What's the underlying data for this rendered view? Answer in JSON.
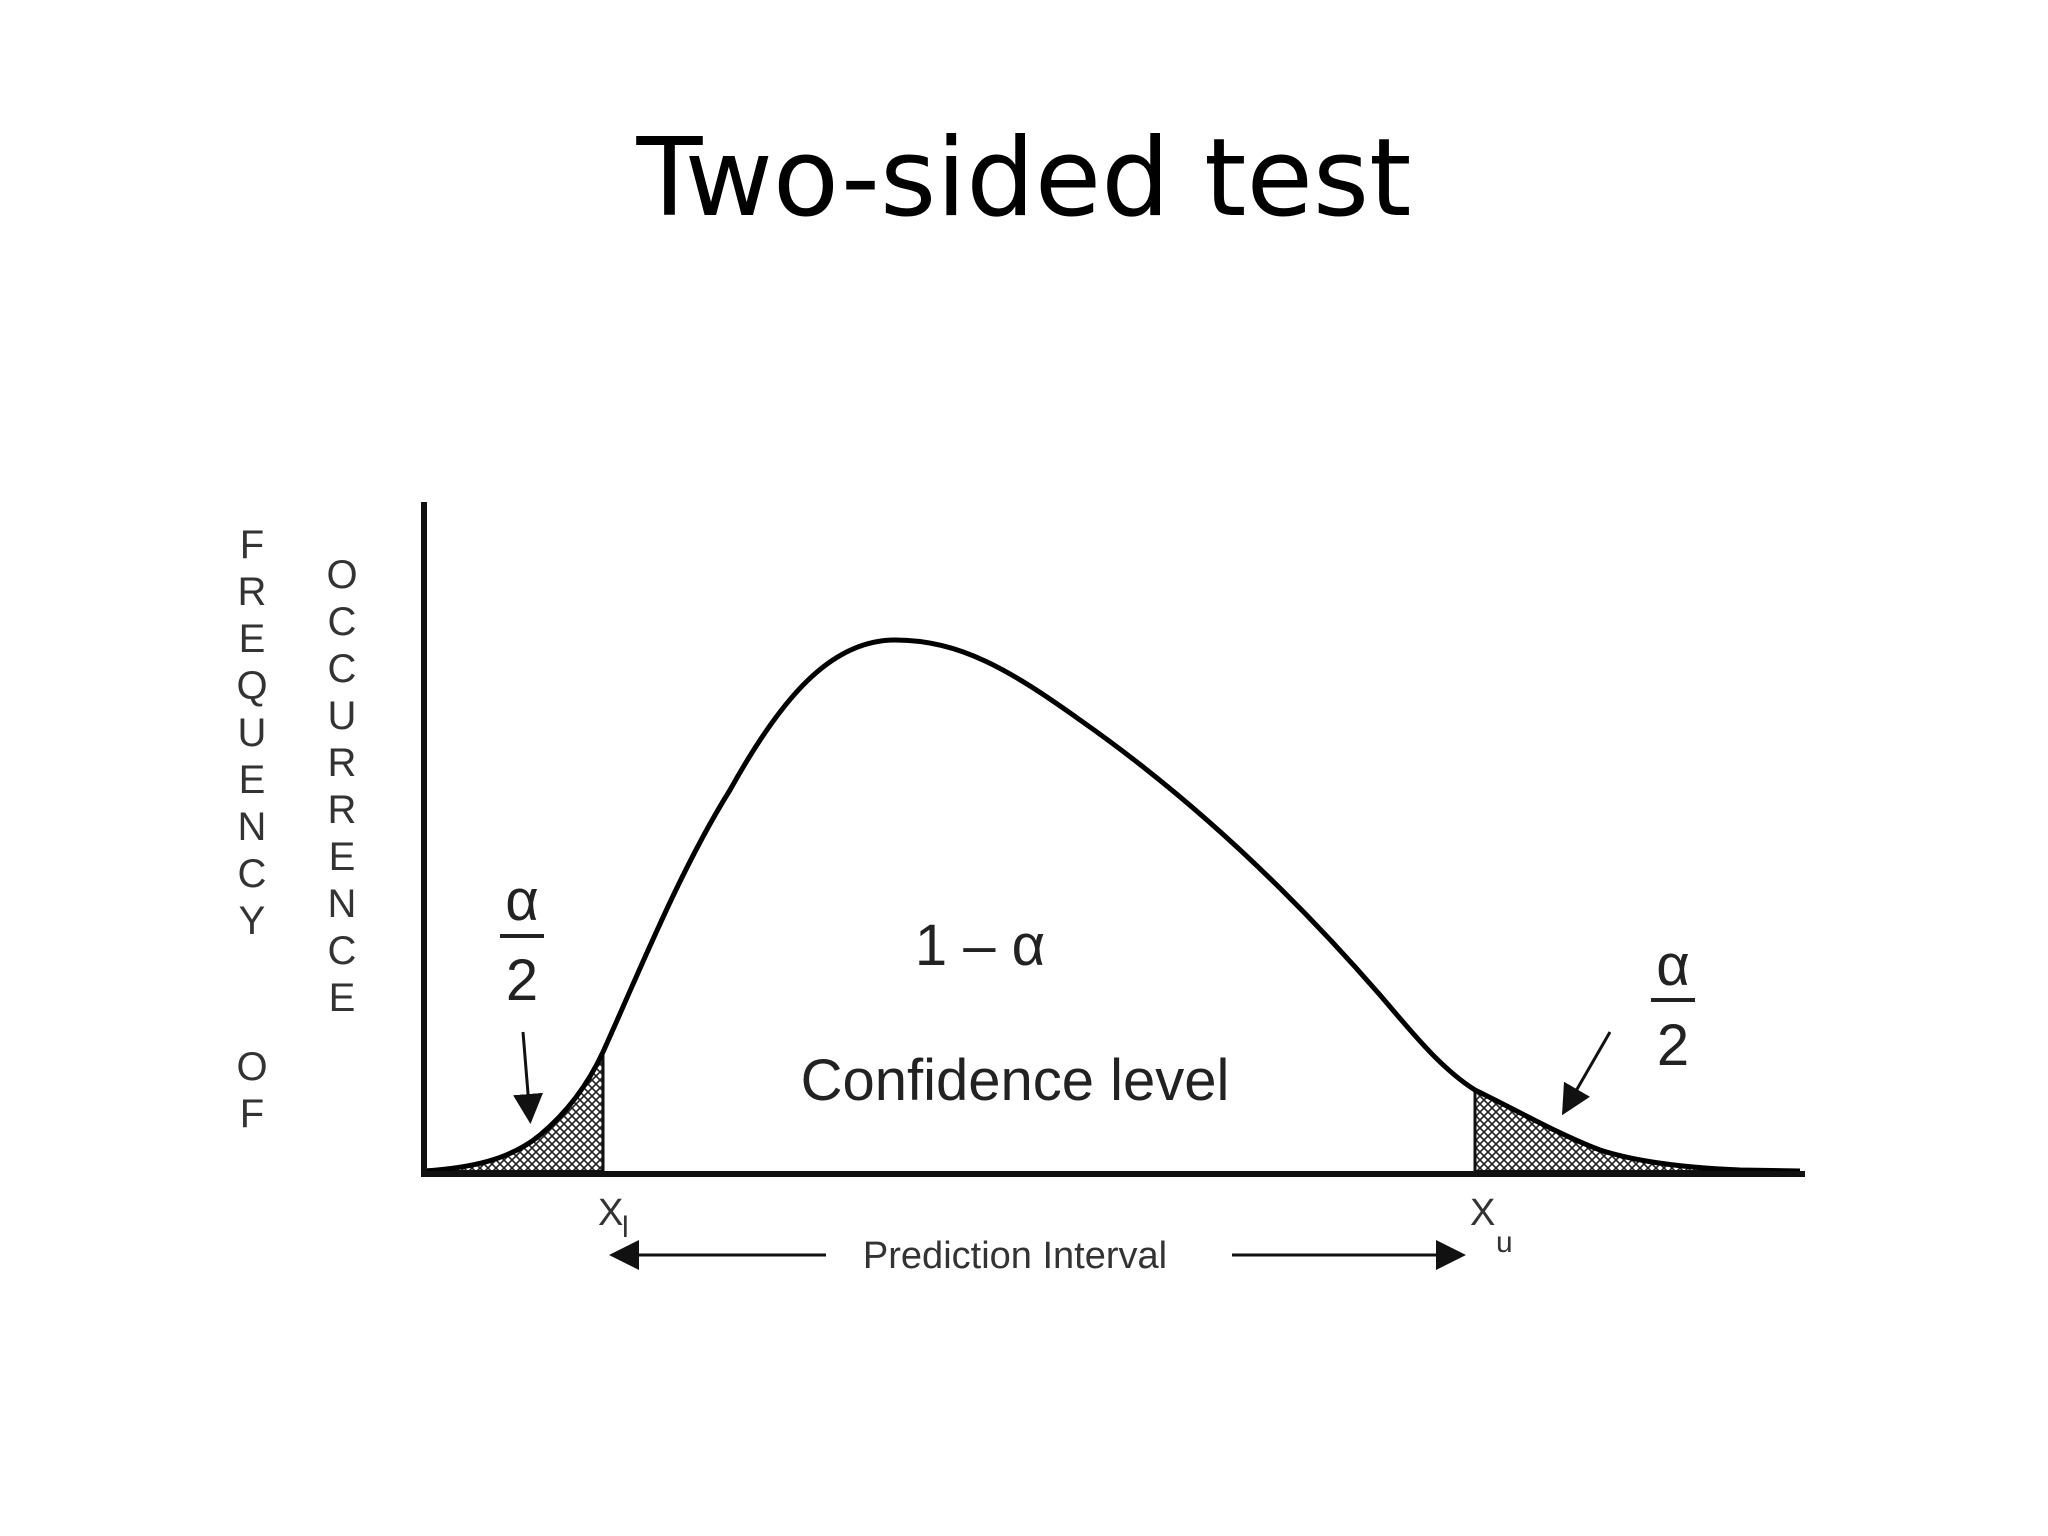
{
  "title": "Two-sided test",
  "diagram": {
    "y_axis_label_col1": "FREQUENCY OF",
    "y_axis_label_col2": "OCCURRENCE",
    "center_label_top": "1 – α",
    "center_label_bottom": "Confidence level",
    "left_tail_num": "α",
    "left_tail_den": "2",
    "right_tail_num": "α",
    "right_tail_den": "2",
    "lower_bound": "X",
    "lower_bound_sub": "l",
    "upper_bound": "X",
    "upper_bound_sub": "u",
    "interval_label": "Prediction Interval"
  }
}
